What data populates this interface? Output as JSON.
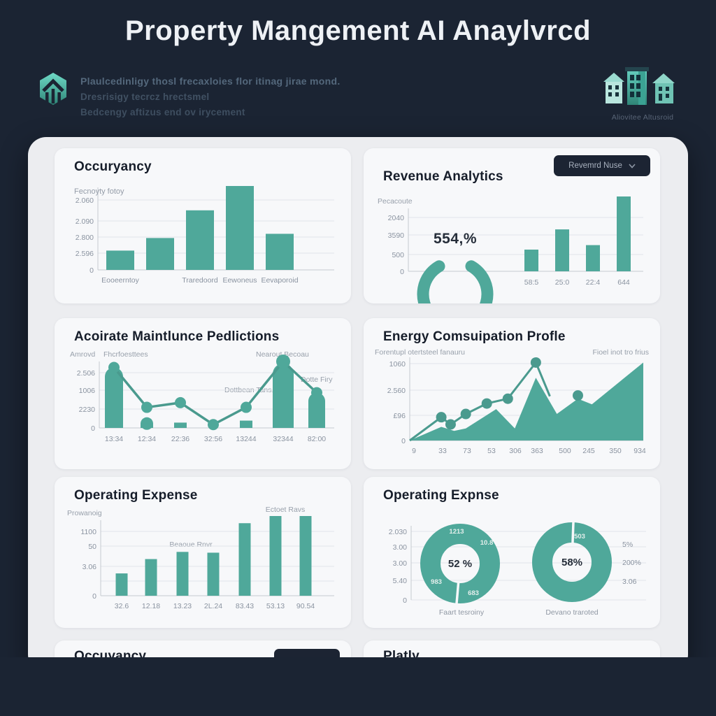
{
  "header": {
    "title": "Property Mangement AI Anaylvrcd",
    "intro_lines": [
      "Plaulcedinligy thosl frecaxloies flor itinag jirae mond.",
      "Dresrisigy tecrcz hrectsmel",
      "Bedcengy aftizus end ov irycement"
    ],
    "logo_caption": "Aliovitee Altusroid"
  },
  "colors": {
    "background": "#1b2433",
    "panel": "#ecedf0",
    "card": "#f7f8fa",
    "teal": "#4fa89a",
    "teal_dark": "#4a9a8e",
    "teal_icon": "#5fd0bd",
    "ink": "#161d2a",
    "muted": "#8a93a0",
    "grid": "#e2e5e9",
    "axis": "#c6cad0",
    "dropdown_bg": "#1c2433",
    "dropdown_text": "#a8b1be"
  },
  "cards": {
    "occupancy": {
      "title": "Occuryancy",
      "subtitle": "Fecnoyty fotoy",
      "chart_data": {
        "type": "bar",
        "y_ticks": [
          "2.060",
          "2.090",
          "2.800",
          "2.596",
          "0"
        ],
        "categories": [
          "Eooeerntoy",
          "",
          "Traredoord",
          "Eewoneus",
          "Eevaporoid"
        ],
        "values": [
          0.23,
          0.38,
          0.71,
          1.0,
          0.43
        ]
      }
    },
    "revenue": {
      "title": "Revenue Analytics",
      "dropdown_label": "Revemrd Nuse",
      "y_label": "Pecacoute",
      "chart_data": {
        "type": "gauge+bar",
        "gauge_text": "554,%",
        "y_ticks": [
          "2040",
          "3590",
          "500",
          "0"
        ],
        "categories": [
          "58:5",
          "25:0",
          "22:4",
          "644"
        ],
        "values": [
          0.29,
          0.56,
          0.35,
          1.0
        ]
      }
    },
    "maintenance": {
      "title": "Acoirate Maintlunce Pedlictions",
      "axis_label": "Amrovd",
      "annotations": [
        "Fhcrfoesttees",
        "Nearout Becoau",
        "Dotte Firy",
        "Dottbean Tans."
      ],
      "chart_data": {
        "type": "bar+line",
        "y_ticks": [
          "2.506",
          "1006",
          "2230",
          "0"
        ],
        "categories": [
          "13:34",
          "12:34",
          "22:36",
          "32:56",
          "13244",
          "32344",
          "82:00"
        ],
        "bar_values": [
          0.91,
          0.16,
          0.08,
          0,
          0.11,
          0.97,
          0.53
        ],
        "line_values": [
          0.91,
          0.31,
          0.38,
          0.05,
          0.31,
          1.0,
          0.53
        ]
      }
    },
    "energy": {
      "title": "Energy Comsuipation Profle",
      "subtitle": "Forentupl otertsteel fanauru",
      "note": "Fioel inot tro frius",
      "chart_data": {
        "type": "area+line",
        "y_ticks": [
          "1060",
          "2.560",
          "£96",
          "0"
        ],
        "categories": [
          "9",
          "33",
          "73",
          "53",
          "306",
          "363",
          "500",
          "245",
          "350",
          "934"
        ],
        "area": [
          [
            0,
            0
          ],
          [
            0.135,
            0.17
          ],
          [
            0.19,
            0.12
          ],
          [
            0.24,
            0.15
          ],
          [
            0.37,
            0.39
          ],
          [
            0.45,
            0.15
          ],
          [
            0.54,
            0.78
          ],
          [
            0.63,
            0.33
          ],
          [
            0.72,
            0.52
          ],
          [
            0.78,
            0.45
          ],
          [
            1,
            0.97
          ]
        ],
        "line": [
          [
            0,
            0
          ],
          [
            0.135,
            0.29
          ],
          [
            0.175,
            0.2
          ],
          [
            0.24,
            0.33
          ],
          [
            0.33,
            0.46
          ],
          [
            0.42,
            0.52
          ],
          [
            0.54,
            0.97
          ],
          [
            0.6,
            0.55
          ]
        ],
        "extra_dot": [
          0.72,
          0.56
        ]
      }
    },
    "expense_bars": {
      "title": "Operating Expense",
      "y_label": "Prowanoig",
      "annotations": [
        "Beaoue Rnvr",
        "Ectoet Ravs"
      ],
      "chart_data": {
        "type": "bar",
        "y_ticks": [
          "1100",
          "50",
          "3.06",
          "0"
        ],
        "categories": [
          "32.6",
          "12.18",
          "13.23",
          "2L.24",
          "83.43",
          "53.13",
          "90.54"
        ],
        "values": [
          0.28,
          0.46,
          0.55,
          0.54,
          0.91,
          1.0,
          1.0
        ]
      }
    },
    "expense_donuts": {
      "title": "Operating Expnse",
      "chart_data": {
        "type": "donut",
        "y_ticks": [
          "2.030",
          "3.00",
          "3.00",
          "5.40",
          "0"
        ],
        "right_labels": [
          "5%",
          "200%",
          "3.06"
        ],
        "donut1": {
          "center": "52 %",
          "ring_labels": [
            "1213",
            "10.8",
            "983",
            "683"
          ],
          "caption": "Faart tesroiny"
        },
        "donut2": {
          "center": "58%",
          "ring_labels": [
            "503"
          ],
          "caption": "Devano traroted"
        }
      }
    },
    "partial_left": {
      "title": "Occuyancy"
    },
    "partial_right": {
      "title": "Platly"
    }
  }
}
